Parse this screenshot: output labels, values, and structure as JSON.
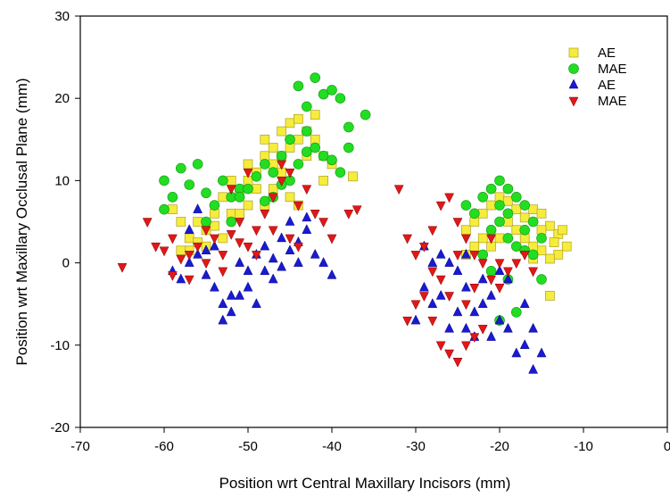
{
  "chart_data": {
    "type": "scatter",
    "title": "",
    "xlabel": "Position wrt Central Maxillary Incisors (mm)",
    "ylabel": "Position wrt Maxillary Occlusal Plane (mm)",
    "xlim": [
      -70,
      0
    ],
    "ylim": [
      -20,
      30
    ],
    "x_ticks": [
      -70,
      -60,
      -50,
      -40,
      -30,
      -20,
      -10,
      0
    ],
    "y_ticks": [
      -20,
      -10,
      0,
      10,
      20,
      30
    ],
    "grid": false,
    "legend_position": "top-right",
    "series": [
      {
        "name": "AE",
        "marker": "square",
        "color": "#f5ec3c",
        "edge": "#b0a020",
        "points": [
          [
            -59,
            6.5
          ],
          [
            -58,
            5
          ],
          [
            -57,
            3
          ],
          [
            -56,
            2.5
          ],
          [
            -55,
            4
          ],
          [
            -54,
            6
          ],
          [
            -53,
            8
          ],
          [
            -52,
            10
          ],
          [
            -51,
            8.5
          ],
          [
            -50,
            12
          ],
          [
            -49,
            11
          ],
          [
            -48,
            13
          ],
          [
            -47,
            14
          ],
          [
            -46,
            16
          ],
          [
            -45,
            17
          ],
          [
            -44,
            17.5
          ],
          [
            -43,
            16
          ],
          [
            -42,
            15
          ],
          [
            -41,
            13
          ],
          [
            -40,
            12
          ],
          [
            -47,
            9
          ],
          [
            -46,
            11
          ],
          [
            -45,
            8
          ],
          [
            -44,
            7
          ],
          [
            -48,
            7
          ],
          [
            -49,
            9
          ],
          [
            -50,
            7
          ],
          [
            -52,
            6
          ],
          [
            -53,
            3
          ],
          [
            -55,
            2
          ],
          [
            -57,
            1.5
          ],
          [
            -58,
            1.5
          ],
          [
            -54,
            4.5
          ],
          [
            -56,
            5
          ],
          [
            -43,
            13
          ],
          [
            -42,
            18
          ],
          [
            -44,
            15
          ],
          [
            -45,
            14
          ],
          [
            -46,
            13
          ],
          [
            -47,
            12
          ],
          [
            -48,
            15
          ],
          [
            -37.5,
            10.5
          ],
          [
            -41,
            10
          ],
          [
            -50,
            10
          ],
          [
            -51,
            6
          ],
          [
            -24,
            4
          ],
          [
            -23,
            5
          ],
          [
            -22,
            6
          ],
          [
            -21,
            7
          ],
          [
            -20,
            8
          ],
          [
            -19,
            7.5
          ],
          [
            -18,
            6.5
          ],
          [
            -17,
            5.5
          ],
          [
            -16,
            6.5
          ],
          [
            -15,
            6
          ],
          [
            -14,
            4.5
          ],
          [
            -13,
            3.5
          ],
          [
            -12.5,
            4
          ],
          [
            -12,
            2
          ],
          [
            -13,
            1
          ],
          [
            -14,
            0.5
          ],
          [
            -15,
            1.5
          ],
          [
            -16,
            2
          ],
          [
            -17,
            3
          ],
          [
            -18,
            4
          ],
          [
            -19,
            5
          ],
          [
            -20,
            3
          ],
          [
            -21,
            2
          ],
          [
            -22,
            3
          ],
          [
            -23,
            2
          ],
          [
            -24,
            1
          ],
          [
            -15,
            4
          ],
          [
            -14,
            -4
          ],
          [
            -13.5,
            2.5
          ],
          [
            -16,
            0.5
          ]
        ]
      },
      {
        "name": "MAE",
        "marker": "circle",
        "color": "#22dd22",
        "edge": "#119911",
        "points": [
          [
            -60,
            10
          ],
          [
            -60,
            6.5
          ],
          [
            -59,
            8
          ],
          [
            -58,
            11.5
          ],
          [
            -57,
            9.5
          ],
          [
            -56,
            12
          ],
          [
            -55,
            8.5
          ],
          [
            -54,
            7
          ],
          [
            -53,
            10
          ],
          [
            -52,
            8
          ],
          [
            -51,
            9
          ],
          [
            -50,
            9
          ],
          [
            -49,
            10.5
          ],
          [
            -48,
            12
          ],
          [
            -47,
            11
          ],
          [
            -46,
            13
          ],
          [
            -45,
            15
          ],
          [
            -44,
            21.5
          ],
          [
            -43,
            19
          ],
          [
            -42,
            22.5
          ],
          [
            -41,
            20.5
          ],
          [
            -40,
            21
          ],
          [
            -39,
            20
          ],
          [
            -38,
            16.5
          ],
          [
            -36,
            18
          ],
          [
            -45,
            10
          ],
          [
            -44,
            12
          ],
          [
            -43,
            13.5
          ],
          [
            -42,
            14
          ],
          [
            -41,
            13
          ],
          [
            -40,
            12.5
          ],
          [
            -39,
            11
          ],
          [
            -38,
            14
          ],
          [
            -47,
            8
          ],
          [
            -48,
            7.5
          ],
          [
            -46,
            9.5
          ],
          [
            -52,
            5
          ],
          [
            -55,
            5
          ],
          [
            -51,
            8
          ],
          [
            -43,
            16
          ],
          [
            -24,
            7
          ],
          [
            -23,
            6
          ],
          [
            -22,
            8
          ],
          [
            -21,
            9
          ],
          [
            -20,
            10
          ],
          [
            -19,
            9
          ],
          [
            -18,
            8
          ],
          [
            -17,
            7
          ],
          [
            -16,
            5
          ],
          [
            -15,
            3
          ],
          [
            -21,
            4
          ],
          [
            -20,
            5
          ],
          [
            -19,
            6
          ],
          [
            -18,
            2
          ],
          [
            -17,
            1.5
          ],
          [
            -22,
            1
          ],
          [
            -21,
            -1
          ],
          [
            -19,
            -2
          ],
          [
            -18,
            -6
          ],
          [
            -20,
            -7
          ],
          [
            -19,
            3
          ],
          [
            -20,
            7
          ],
          [
            -17,
            4
          ],
          [
            -16,
            1
          ],
          [
            -15,
            -2
          ]
        ]
      },
      {
        "name": "AE",
        "marker": "triangle-up",
        "color": "#1a1ad0",
        "edge": "#000088",
        "points": [
          [
            -59,
            -1
          ],
          [
            -58,
            -2
          ],
          [
            -57,
            0
          ],
          [
            -56,
            1
          ],
          [
            -55,
            -1.5
          ],
          [
            -54,
            -3
          ],
          [
            -53,
            -5
          ],
          [
            -52,
            -6
          ],
          [
            -51,
            -4
          ],
          [
            -50,
            -3
          ],
          [
            -49,
            -5
          ],
          [
            -48,
            -1
          ],
          [
            -47,
            0.5
          ],
          [
            -46,
            -0.5
          ],
          [
            -45,
            1.5
          ],
          [
            -44,
            2.5
          ],
          [
            -43,
            4
          ],
          [
            -42,
            1
          ],
          [
            -41,
            0
          ],
          [
            -40,
            -1.5
          ],
          [
            -53,
            -7
          ],
          [
            -52,
            -4
          ],
          [
            -50,
            -1
          ],
          [
            -48,
            2
          ],
          [
            -46,
            3
          ],
          [
            -45,
            5
          ],
          [
            -44,
            0
          ],
          [
            -47,
            -2
          ],
          [
            -49,
            1
          ],
          [
            -51,
            0
          ],
          [
            -55,
            1.5
          ],
          [
            -57,
            4
          ],
          [
            -56,
            6.5
          ],
          [
            -54,
            2
          ],
          [
            -43,
            5.5
          ],
          [
            -30,
            -7
          ],
          [
            -29,
            -3
          ],
          [
            -28,
            -5
          ],
          [
            -27,
            -4
          ],
          [
            -26,
            -8
          ],
          [
            -25,
            -6
          ],
          [
            -24,
            -3
          ],
          [
            -23,
            -6
          ],
          [
            -22,
            -5
          ],
          [
            -21,
            -9
          ],
          [
            -20,
            -7
          ],
          [
            -19,
            -8
          ],
          [
            -18,
            -11
          ],
          [
            -17,
            -10
          ],
          [
            -16,
            -13
          ],
          [
            -15,
            -11
          ],
          [
            -25,
            -1
          ],
          [
            -26,
            0
          ],
          [
            -27,
            1
          ],
          [
            -24,
            -8
          ],
          [
            -23,
            -9
          ],
          [
            -22,
            -2
          ],
          [
            -21,
            -4
          ],
          [
            -20,
            -1
          ],
          [
            -19,
            -2
          ],
          [
            -17,
            -5
          ],
          [
            -16,
            -8
          ],
          [
            -28,
            0
          ],
          [
            -29,
            2
          ],
          [
            -24,
            1
          ]
        ]
      },
      {
        "name": "MAE",
        "marker": "triangle-down",
        "color": "#e01818",
        "edge": "#880000",
        "points": [
          [
            -65,
            -0.5
          ],
          [
            -62,
            5
          ],
          [
            -61,
            2
          ],
          [
            -60,
            1.5
          ],
          [
            -59,
            3
          ],
          [
            -58,
            0.5
          ],
          [
            -57,
            -2
          ],
          [
            -56,
            2
          ],
          [
            -55,
            4
          ],
          [
            -54,
            3
          ],
          [
            -53,
            1
          ],
          [
            -52,
            3.5
          ],
          [
            -51,
            5
          ],
          [
            -50,
            2
          ],
          [
            -49,
            4
          ],
          [
            -48,
            6
          ],
          [
            -47,
            8
          ],
          [
            -46,
            10
          ],
          [
            -45,
            11
          ],
          [
            -44,
            7
          ],
          [
            -43,
            9
          ],
          [
            -42,
            6
          ],
          [
            -41,
            5
          ],
          [
            -40,
            3
          ],
          [
            -38,
            6
          ],
          [
            -37,
            6.5
          ],
          [
            -47,
            4
          ],
          [
            -49,
            1
          ],
          [
            -51,
            2.5
          ],
          [
            -53,
            -1
          ],
          [
            -55,
            0
          ],
          [
            -57,
            1
          ],
          [
            -59,
            -1.5
          ],
          [
            -45,
            3
          ],
          [
            -44,
            2
          ],
          [
            -52,
            9
          ],
          [
            -50,
            11
          ],
          [
            -46,
            12
          ],
          [
            -32,
            9
          ],
          [
            -31,
            3
          ],
          [
            -30,
            1
          ],
          [
            -29,
            2
          ],
          [
            -28,
            4
          ],
          [
            -27,
            7
          ],
          [
            -26,
            8
          ],
          [
            -25,
            5
          ],
          [
            -24,
            3
          ],
          [
            -23,
            1
          ],
          [
            -22,
            0
          ],
          [
            -21,
            -2
          ],
          [
            -20,
            -3
          ],
          [
            -19,
            -1
          ],
          [
            -18,
            0
          ],
          [
            -29,
            -4
          ],
          [
            -28,
            -7
          ],
          [
            -27,
            -10
          ],
          [
            -26,
            -11
          ],
          [
            -25,
            -12
          ],
          [
            -24,
            -10
          ],
          [
            -23,
            -9
          ],
          [
            -22,
            -8
          ],
          [
            -31,
            -7
          ],
          [
            -30,
            -5
          ],
          [
            -26,
            -4
          ],
          [
            -24,
            -5
          ],
          [
            -27,
            -2
          ],
          [
            -28,
            -1
          ],
          [
            -25,
            1
          ],
          [
            -23,
            -3
          ],
          [
            -21,
            3
          ],
          [
            -20,
            0
          ],
          [
            -17,
            1
          ],
          [
            -16,
            -1
          ]
        ]
      }
    ]
  }
}
